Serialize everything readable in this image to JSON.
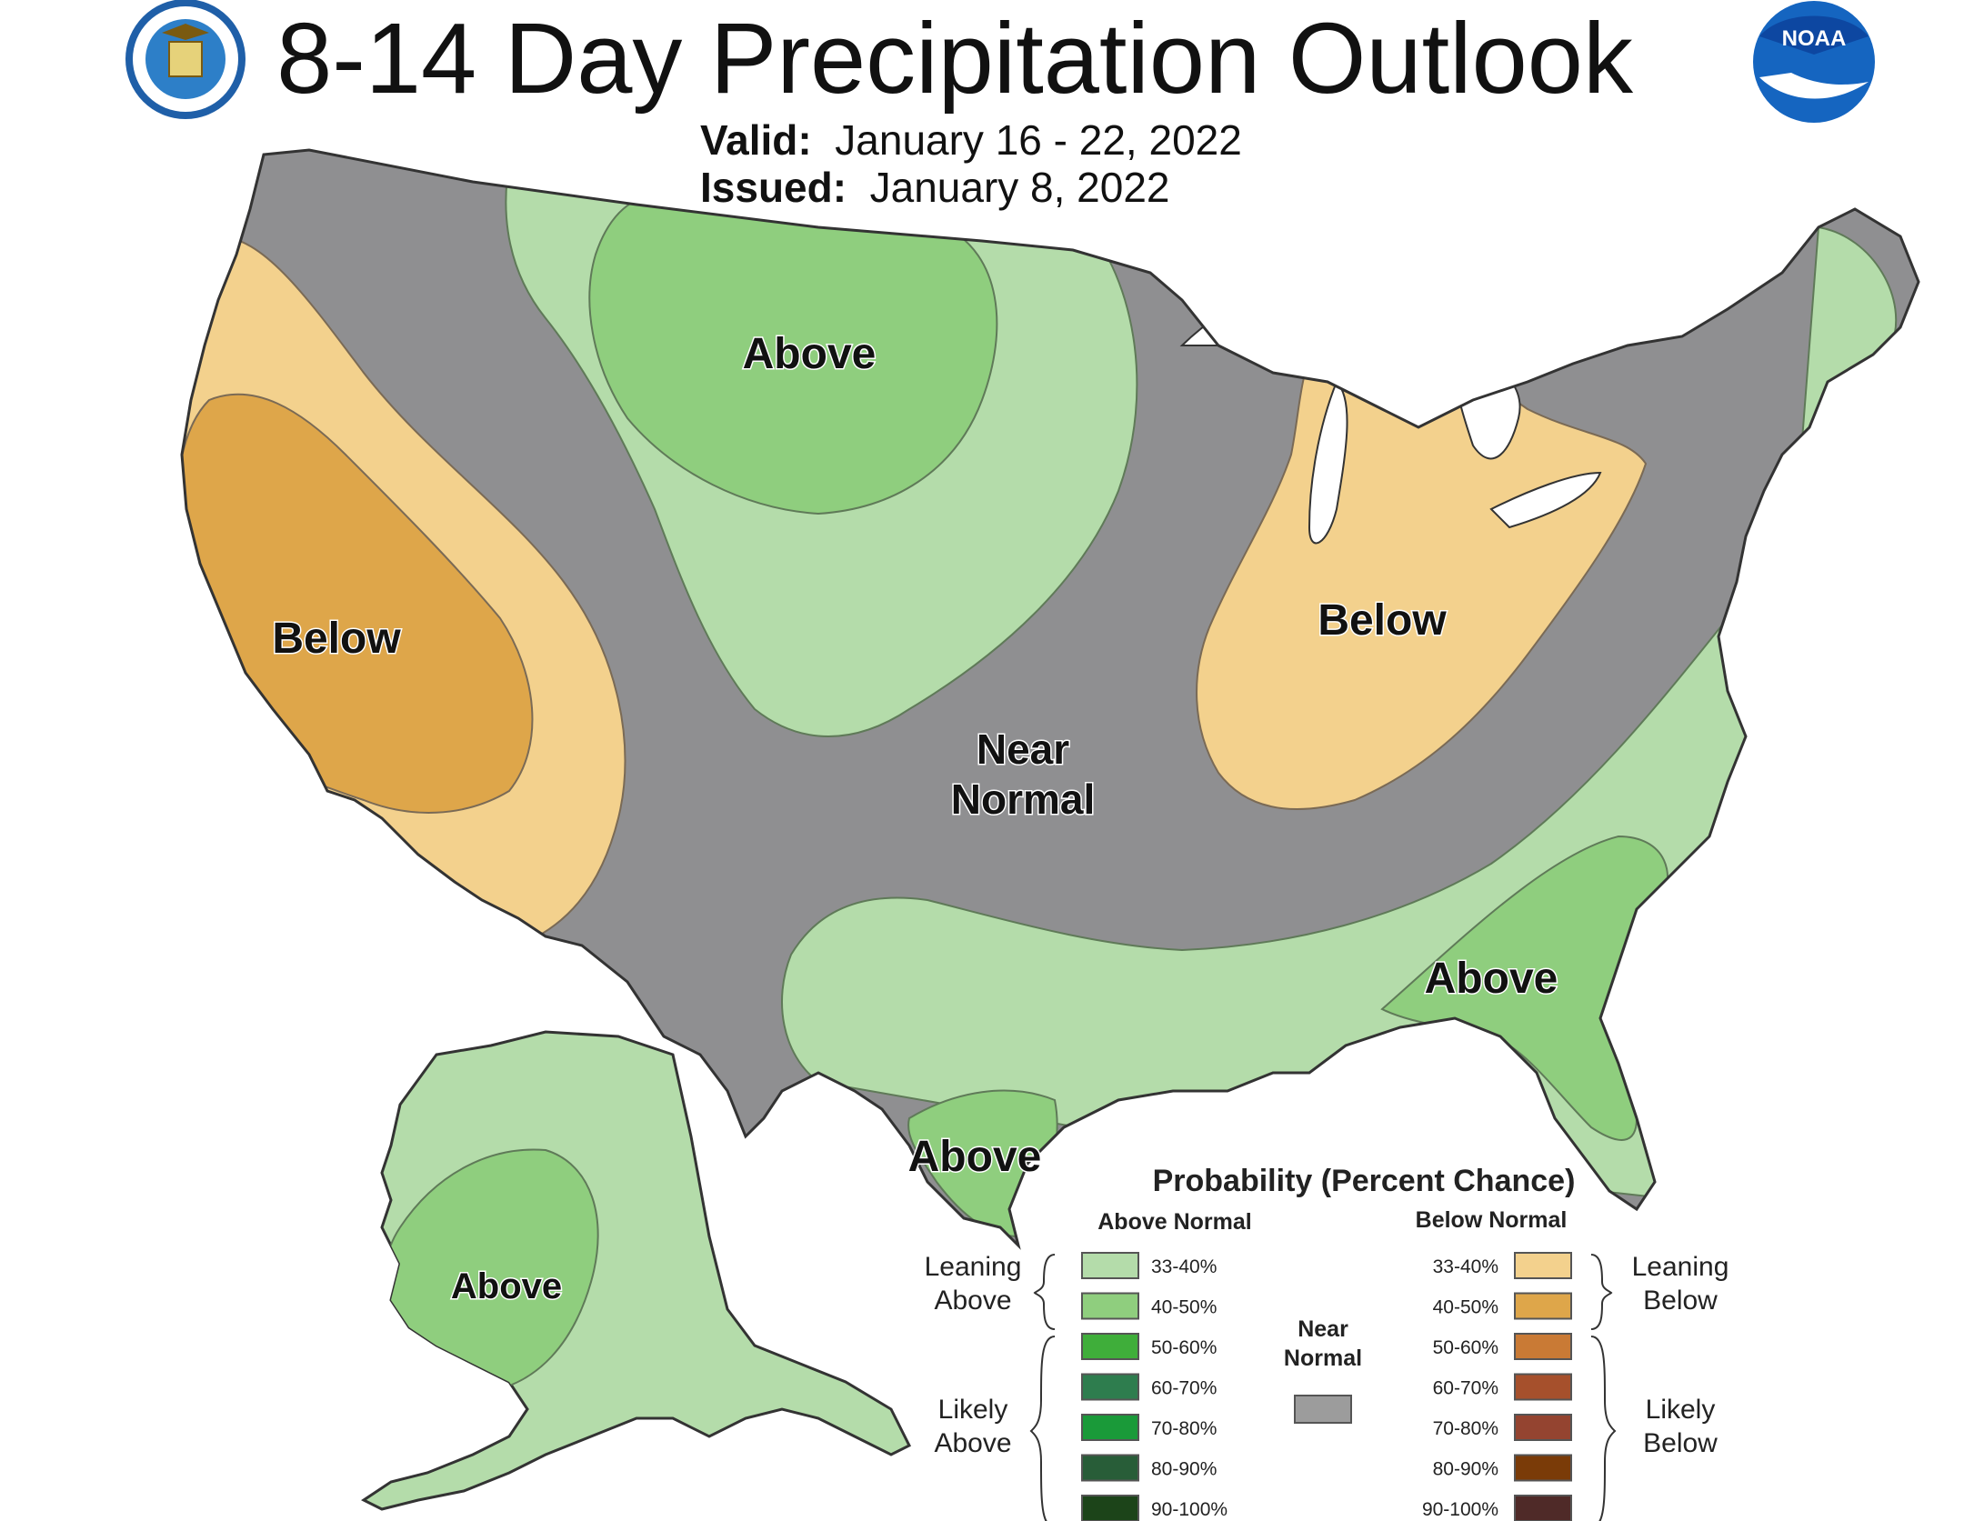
{
  "header": {
    "title": "8-14 Day Precipitation Outlook",
    "valid_label": "Valid:",
    "valid_value": "January 16 - 22, 2022",
    "issued_label": "Issued:",
    "issued_value": "January 8, 2022"
  },
  "logos": {
    "left": "commerce-seal-icon",
    "right": "noaa-logo-icon",
    "noaa_text": "NOAA"
  },
  "regions": {
    "west_below": "Below",
    "north_above": "Above",
    "near_normal_1": "Near",
    "near_normal_2": "Normal",
    "ohio_below": "Below",
    "southeast_above": "Above",
    "texas_above": "Above",
    "alaska_above": "Above"
  },
  "legend": {
    "title": "Probability (Percent Chance)",
    "above_header": "Above Normal",
    "below_header": "Below Normal",
    "leaning_above": [
      "Leaning",
      "Above"
    ],
    "likely_above": [
      "Likely",
      "Above"
    ],
    "leaning_below": [
      "Leaning",
      "Below"
    ],
    "likely_below": [
      "Likely",
      "Below"
    ],
    "near_normal": [
      "Near",
      "Normal"
    ],
    "ranges": [
      "33-40%",
      "40-50%",
      "50-60%",
      "60-70%",
      "70-80%",
      "80-90%",
      "90-100%"
    ],
    "above_colors": [
      "#b4dcaa",
      "#8fce7e",
      "#3fae3a",
      "#2e7d4e",
      "#1a9a39",
      "#285d38",
      "#1c4419"
    ],
    "below_colors": [
      "#f3d18d",
      "#dea64a",
      "#c97a35",
      "#a6502c",
      "#944430",
      "#7a3b08",
      "#4f2a28"
    ],
    "near_color": "#9c9c9c"
  },
  "colors": {
    "near_normal_fill": "#8f8f91",
    "above_33_40": "#b4dcaa",
    "above_40_50": "#8fce7e",
    "below_33_40": "#f3d18d",
    "below_40_50": "#dea64a",
    "lakes": "#ffffff"
  }
}
